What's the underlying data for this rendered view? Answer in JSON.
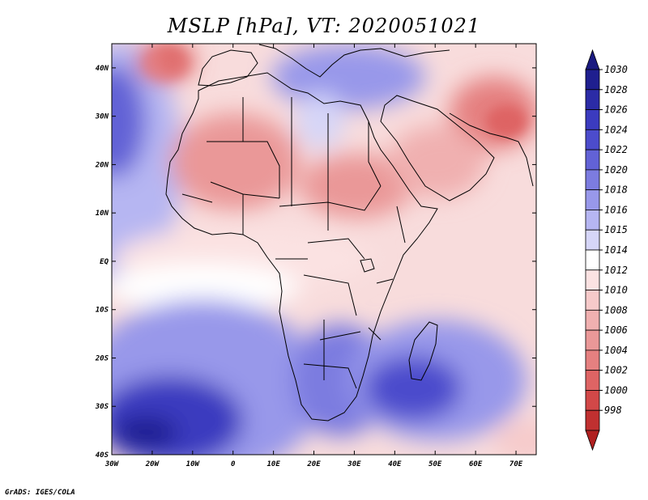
{
  "title": "MSLP [hPa], VT: 2020051021",
  "credit": "GrADS: IGES/COLA",
  "map": {
    "projection": "latlon",
    "lon_range": [
      -30,
      75
    ],
    "lat_range": [
      -40,
      45
    ],
    "lat_ticks": [
      {
        "value": 40,
        "label": "40N"
      },
      {
        "value": 30,
        "label": "30N"
      },
      {
        "value": 20,
        "label": "20N"
      },
      {
        "value": 10,
        "label": "10N"
      },
      {
        "value": 0,
        "label": "EQ"
      },
      {
        "value": -10,
        "label": "10S"
      },
      {
        "value": -20,
        "label": "20S"
      },
      {
        "value": -30,
        "label": "30S"
      },
      {
        "value": -40,
        "label": "40S"
      }
    ],
    "lon_ticks": [
      {
        "value": -30,
        "label": "30W"
      },
      {
        "value": -20,
        "label": "20W"
      },
      {
        "value": -10,
        "label": "10W"
      },
      {
        "value": 0,
        "label": "0"
      },
      {
        "value": 10,
        "label": "10E"
      },
      {
        "value": 20,
        "label": "20E"
      },
      {
        "value": 30,
        "label": "30E"
      },
      {
        "value": 40,
        "label": "40E"
      },
      {
        "value": 50,
        "label": "50E"
      },
      {
        "value": 60,
        "label": "60E"
      },
      {
        "value": 70,
        "label": "70E"
      }
    ]
  },
  "colorbar": {
    "levels": [
      {
        "label": "1030",
        "color": "#1f1f8f"
      },
      {
        "label": "1028",
        "color": "#2b2ba6"
      },
      {
        "label": "1026",
        "color": "#3b3bbf"
      },
      {
        "label": "1024",
        "color": "#4c4ccc"
      },
      {
        "label": "1022",
        "color": "#6262d6"
      },
      {
        "label": "1020",
        "color": "#7c7ce0"
      },
      {
        "label": "1018",
        "color": "#9898ea"
      },
      {
        "label": "1016",
        "color": "#b6b6f2"
      },
      {
        "label": "1015",
        "color": "#d6d6f8"
      },
      {
        "label": "1014",
        "color": "#ffffff"
      },
      {
        "label": "1012",
        "color": "#fbe2e2"
      },
      {
        "label": "1010",
        "color": "#f6caca"
      },
      {
        "label": "1008",
        "color": "#f0b0b0"
      },
      {
        "label": "1006",
        "color": "#ea9898"
      },
      {
        "label": "1004",
        "color": "#e58080"
      },
      {
        "label": "1002",
        "color": "#de6464"
      },
      {
        "label": "1000",
        "color": "#d24848"
      },
      {
        "label": "998",
        "color": "#c03030"
      }
    ],
    "top_color": "#1a1a80",
    "bottom_color": "#b02020"
  },
  "colors": {
    "ocean_base": "#f8d8d8",
    "coast": "#000000"
  }
}
